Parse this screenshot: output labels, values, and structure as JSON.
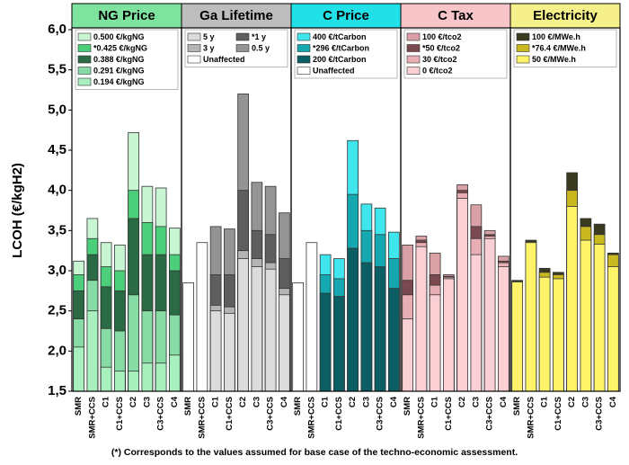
{
  "chart_data": [
    {
      "type": "bar",
      "title": "NG Price",
      "color": "#7fe3a0",
      "ylabel": "LCOH (€/kgH2)",
      "ylim": [
        1.5,
        6.0
      ],
      "yticks": [
        {
          "value": 1.5,
          "label": "1,5"
        },
        {
          "value": 2.0,
          "label": "2,0"
        },
        {
          "value": 2.5,
          "label": "2,5"
        },
        {
          "value": 3.0,
          "label": "3,0"
        },
        {
          "value": 3.5,
          "label": "3,5"
        },
        {
          "value": 4.0,
          "label": "4,0"
        },
        {
          "value": 4.5,
          "label": "4,5"
        },
        {
          "value": 5.0,
          "label": "5,0"
        },
        {
          "value": 5.5,
          "label": "5,5"
        },
        {
          "value": 6.0,
          "label": "6,0"
        }
      ],
      "categories": [
        "SMR",
        "SMR+CCS",
        "C1",
        "C1+CCS",
        "C2",
        "C3",
        "C3+CCS",
        "C4"
      ],
      "series": [
        {
          "name": "0.500 €/kgNG",
          "color": "#c8f5d2",
          "values": [
            3.12,
            3.65,
            3.35,
            3.32,
            4.72,
            4.05,
            4.03,
            3.53
          ]
        },
        {
          "name": "*0.425 €/kgNG",
          "color": "#4ccf7a",
          "values": [
            2.95,
            3.4,
            3.05,
            3.0,
            4.0,
            3.6,
            3.55,
            3.2
          ]
        },
        {
          "name": "0.388 €/kgNG",
          "color": "#2a6a44",
          "values": [
            2.75,
            3.2,
            2.8,
            2.75,
            3.65,
            3.2,
            3.2,
            3.0
          ]
        },
        {
          "name": "0.291 €/kgNG",
          "color": "#86dca4",
          "values": [
            2.4,
            2.88,
            2.28,
            2.25,
            2.7,
            2.5,
            2.5,
            2.45
          ]
        },
        {
          "name": "0.194 €/kgNG",
          "color": "#a9f0bf",
          "values": [
            2.05,
            2.5,
            1.8,
            1.75,
            1.75,
            1.85,
            1.85,
            1.95
          ]
        }
      ]
    },
    {
      "type": "bar",
      "title": "Ga Lifetime",
      "color": "#bdbdbd",
      "legend_columns": 2,
      "categories": [
        "SMR",
        "SMR+CCS",
        "C1",
        "C1+CCS",
        "C2",
        "C3",
        "C3+CCS",
        "C4"
      ],
      "series": [
        {
          "name": "5 y",
          "color": "#dcdcdc",
          "values": [
            null,
            null,
            2.5,
            2.47,
            3.15,
            3.05,
            3.02,
            2.7
          ]
        },
        {
          "name": "*1 y",
          "color": "#5e5e5e",
          "values": [
            null,
            null,
            2.95,
            2.95,
            4.0,
            3.5,
            3.45,
            3.15
          ]
        },
        {
          "name": "3 y",
          "color": "#b4b4b4",
          "values": [
            null,
            null,
            2.57,
            2.55,
            3.25,
            3.15,
            3.1,
            2.78
          ]
        },
        {
          "name": "0.5 y",
          "color": "#949494",
          "values": [
            null,
            null,
            3.55,
            3.52,
            5.2,
            4.1,
            4.05,
            3.72
          ]
        },
        {
          "name": "Unaffected",
          "color": "#ffffff",
          "values": [
            2.85,
            3.35,
            null,
            null,
            null,
            null,
            null,
            null
          ]
        }
      ]
    },
    {
      "type": "bar",
      "title": "C Price",
      "color": "#22e0e8",
      "categories": [
        "SMR",
        "SMR+CCS",
        "C1",
        "C1+CCS",
        "C2",
        "C3",
        "C3+CCS",
        "C4"
      ],
      "series": [
        {
          "name": "400 €/tCarbon",
          "color": "#3fe6ee",
          "values": [
            null,
            null,
            3.2,
            3.15,
            4.62,
            3.83,
            3.78,
            3.48
          ]
        },
        {
          "name": "*296 €/tCarbon",
          "color": "#15a8b0",
          "values": [
            null,
            null,
            2.95,
            2.9,
            3.95,
            3.5,
            3.45,
            3.15
          ]
        },
        {
          "name": "200 €/tCarbon",
          "color": "#0b5e64",
          "values": [
            null,
            null,
            2.72,
            2.68,
            3.28,
            3.1,
            3.05,
            2.78
          ]
        },
        {
          "name": "Unaffected",
          "color": "#ffffff",
          "values": [
            2.85,
            3.35,
            null,
            null,
            null,
            null,
            null,
            null
          ]
        }
      ]
    },
    {
      "type": "bar",
      "title": "C Tax",
      "color": "#f7c4c8",
      "categories": [
        "SMR",
        "SMR+CCS",
        "C1",
        "C1+CCS",
        "C2",
        "C3",
        "C3+CCS",
        "C4"
      ],
      "series": [
        {
          "name": "100 €/tco2",
          "color": "#d9a0a6",
          "values": [
            3.32,
            3.43,
            3.22,
            2.95,
            4.07,
            3.82,
            3.5,
            3.18
          ]
        },
        {
          "name": "*50 €/tco2",
          "color": "#7a4a50",
          "values": [
            2.88,
            3.38,
            2.95,
            2.93,
            4.0,
            3.55,
            3.45,
            3.12
          ]
        },
        {
          "name": "30 €/tco2",
          "color": "#e8aeb4",
          "values": [
            2.7,
            3.35,
            2.82,
            2.92,
            3.97,
            3.4,
            3.43,
            3.1
          ]
        },
        {
          "name": "0 €/tco2",
          "color": "#fbd0d4",
          "values": [
            2.4,
            3.3,
            2.7,
            2.9,
            3.9,
            3.2,
            3.4,
            3.05
          ]
        }
      ]
    },
    {
      "type": "bar",
      "title": "Electricity",
      "color": "#f6f08a",
      "categories": [
        "SMR",
        "SMR+CCS",
        "C1",
        "C1+CCS",
        "C2",
        "C3",
        "C3+CCS",
        "C4"
      ],
      "series": [
        {
          "name": "100 €/MWe.h",
          "color": "#3a3a20",
          "values": [
            2.88,
            3.38,
            3.03,
            2.98,
            4.22,
            3.65,
            3.58,
            3.22
          ]
        },
        {
          "name": "*76.4 €/MWe.h",
          "color": "#c9b820",
          "values": [
            2.87,
            3.36,
            2.98,
            2.95,
            4.0,
            3.55,
            3.45,
            3.2
          ]
        },
        {
          "name": "50 €/MWe.h",
          "color": "#fff36a",
          "values": [
            2.86,
            3.35,
            2.92,
            2.9,
            3.8,
            3.38,
            3.33,
            3.05
          ]
        }
      ]
    }
  ],
  "note": "(*) Corresponds to the values assumed for base case of the techno-economic assessment."
}
